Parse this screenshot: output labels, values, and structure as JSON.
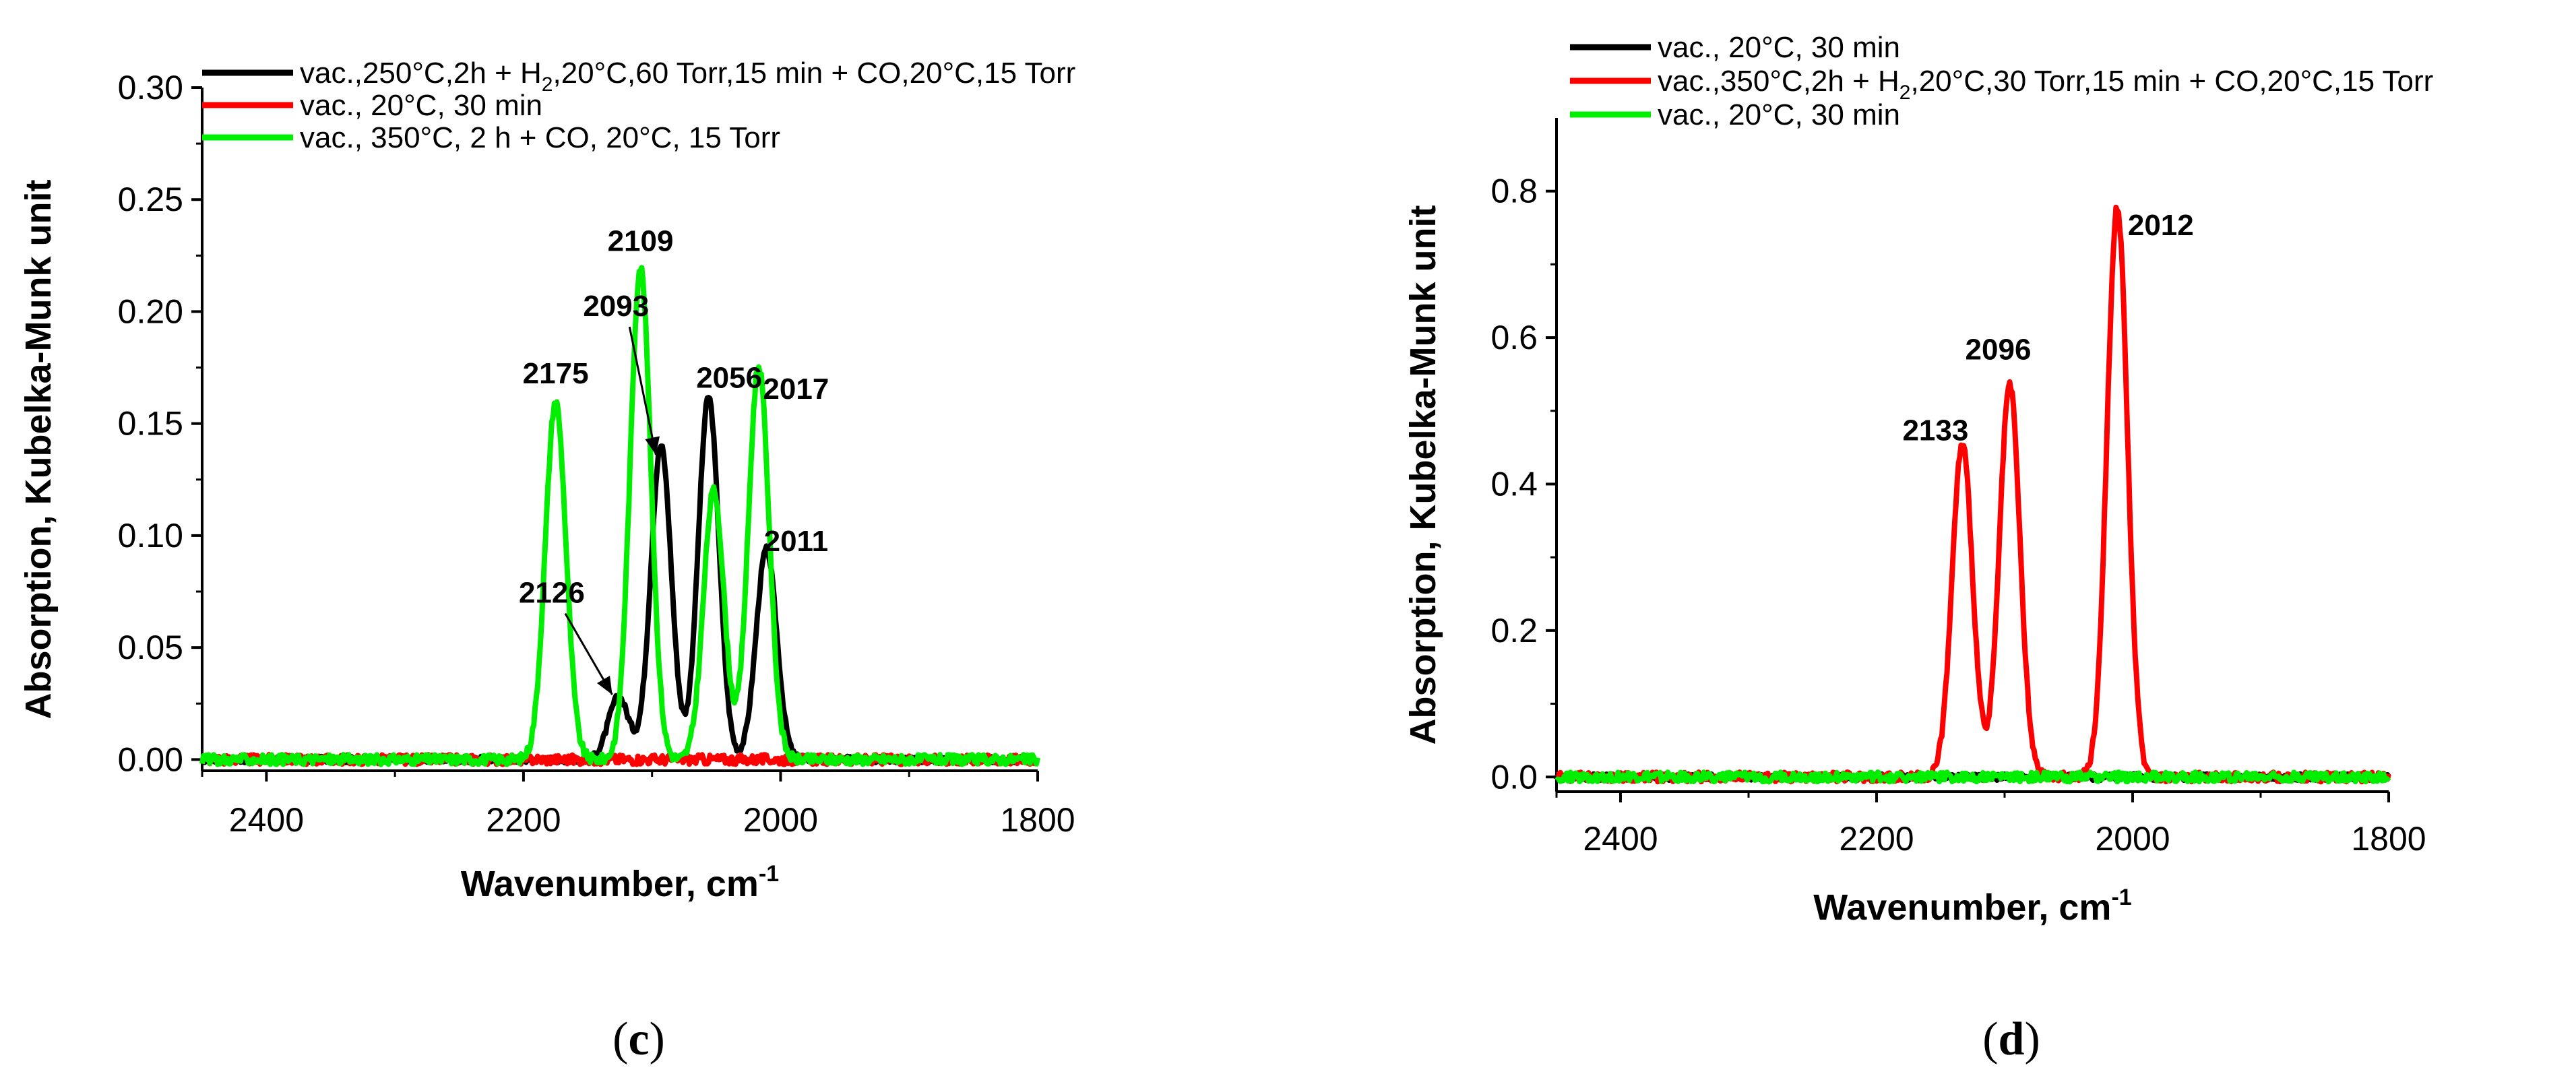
{
  "chart_data": [
    {
      "panel": "c",
      "type": "line",
      "xlabel": "Wavenumber, cm",
      "xlabel_sup": "-1",
      "ylabel": "Absorption, Kubelka-Munk unit",
      "xlim": [
        2450,
        1800
      ],
      "ylim": [
        -0.005,
        0.3
      ],
      "xticks": [
        2400,
        2200,
        2000,
        1800
      ],
      "xtick_labels": [
        "2400",
        "2200",
        "2000",
        "1800"
      ],
      "yticks": [
        0.0,
        0.05,
        0.1,
        0.15,
        0.2,
        0.25,
        0.3
      ],
      "ytick_labels": [
        "0.00",
        "0.05",
        "0.10",
        "0.15",
        "0.20",
        "0.25",
        "0.30"
      ],
      "legend_position": "top-left",
      "series": [
        {
          "name": "vac.,250°C,2h + H2,20°C,60 Torr,15 min + CO,20°C,15 Torr",
          "legend_parts": [
            "vac.,250°C,2h + H",
            "2",
            ",20°C,60 Torr,15 min + CO,20°C,15 Torr"
          ],
          "color": "#000000",
          "peaks": [
            {
              "x": 2126,
              "height": 0.028,
              "width": 8
            },
            {
              "x": 2093,
              "height": 0.14,
              "width": 8
            },
            {
              "x": 2056,
              "height": 0.162,
              "width": 8
            },
            {
              "x": 2011,
              "height": 0.094,
              "width": 8
            }
          ]
        },
        {
          "name": "vac., 20°C, 30 min",
          "legend_parts": [
            "vac., 20°C, 30 min"
          ],
          "color": "#ff0000",
          "peaks": []
        },
        {
          "name": "vac., 350°C, 2 h + CO, 20°C, 15 Torr",
          "legend_parts": [
            "vac., 350°C, 2 h + CO, 20°C, 15 Torr"
          ],
          "color": "#00ee00",
          "peaks": [
            {
              "x": 2175,
              "height": 0.16,
              "width": 8
            },
            {
              "x": 2109,
              "height": 0.22,
              "width": 8
            },
            {
              "x": 2052,
              "height": 0.12,
              "width": 8
            },
            {
              "x": 2017,
              "height": 0.176,
              "width": 8
            }
          ]
        }
      ],
      "annotations": [
        {
          "text": "2175",
          "x": 2175,
          "y": 0.168,
          "arrow": false
        },
        {
          "text": "2109",
          "x": 2109,
          "y": 0.227,
          "arrow": false
        },
        {
          "text": "2093",
          "x": 2128,
          "y": 0.198,
          "arrow": true,
          "arrow_to": [
            2097,
            0.136
          ]
        },
        {
          "text": "2056",
          "x": 2040,
          "y": 0.166,
          "arrow": false
        },
        {
          "text": "2017",
          "x": 1988,
          "y": 0.161,
          "arrow": false
        },
        {
          "text": "2011",
          "x": 1988,
          "y": 0.093,
          "arrow": false
        },
        {
          "text": "2126",
          "x": 2178,
          "y": 0.07,
          "arrow": true,
          "arrow_to": [
            2131,
            0.029
          ]
        }
      ]
    },
    {
      "panel": "d",
      "type": "line",
      "xlabel": "Wavenumber, cm",
      "xlabel_sup": "-1",
      "ylabel": "Absorption, Kubelka-Munk unit",
      "xlim": [
        2450,
        1800
      ],
      "ylim": [
        -0.02,
        0.9
      ],
      "xticks": [
        2400,
        2200,
        2000,
        1800
      ],
      "xtick_labels": [
        "2400",
        "2200",
        "2000",
        "1800"
      ],
      "yticks": [
        0.0,
        0.2,
        0.4,
        0.6,
        0.8
      ],
      "ytick_labels": [
        "0.0",
        "0.2",
        "0.4",
        "0.6",
        "0.8"
      ],
      "legend_position": "top-left",
      "series": [
        {
          "name": "vac., 20°C, 30 min",
          "legend_parts": [
            "vac., 20°C, 30 min"
          ],
          "color": "#000000",
          "peaks": []
        },
        {
          "name": "vac.,350°C,2h + H2,20°C,30 Torr,15 min + CO,20°C,15 Torr",
          "legend_parts": [
            "vac.,350°C,2h + H",
            "2",
            ",20°C,30 Torr,15 min + CO,20°C,15 Torr"
          ],
          "color": "#ff0000",
          "peaks": [
            {
              "x": 2133,
              "height": 0.455,
              "width": 8
            },
            {
              "x": 2096,
              "height": 0.535,
              "width": 8
            },
            {
              "x": 2012,
              "height": 0.778,
              "width": 8
            }
          ]
        },
        {
          "name": "vac., 20°C, 30 min",
          "legend_parts": [
            "vac., 20°C, 30 min"
          ],
          "color": "#00ee00",
          "peaks": []
        }
      ],
      "annotations": [
        {
          "text": "2133",
          "x": 2154,
          "y": 0.46,
          "arrow": false
        },
        {
          "text": "2096",
          "x": 2105,
          "y": 0.57,
          "arrow": false
        },
        {
          "text": "2012",
          "x": 1978,
          "y": 0.74,
          "arrow": false
        }
      ]
    }
  ],
  "panel_labels": {
    "c": {
      "open": "(",
      "letter": "c",
      "close": ")"
    },
    "d": {
      "open": "(",
      "letter": "d",
      "close": ")"
    }
  }
}
